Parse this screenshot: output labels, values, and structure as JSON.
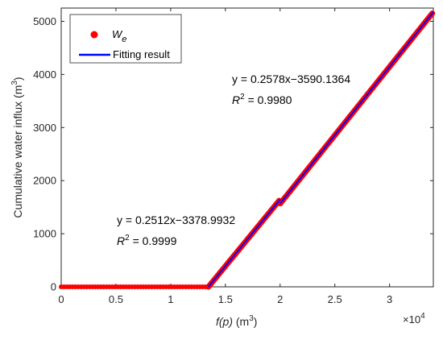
{
  "chart_data": {
    "type": "scatter",
    "xlabel": {
      "italic": "f(p)",
      "rest": " (m",
      "sup": "3",
      "close": ")"
    },
    "ylabel": {
      "main": "Cumulative water influx (m",
      "sup": "3",
      "close": ")"
    },
    "x_tick_labels": [
      "0",
      "0.5",
      "1",
      "1.5",
      "2",
      "2.5",
      "3"
    ],
    "x_ticks": [
      0,
      5000,
      10000,
      15000,
      20000,
      25000,
      30000
    ],
    "y_tick_labels": [
      "0",
      "1000",
      "2000",
      "3000",
      "4000",
      "5000"
    ],
    "y_ticks": [
      0,
      1000,
      2000,
      3000,
      4000,
      5000
    ],
    "x_exponent": {
      "base": "×10",
      "exp": "4"
    },
    "xlim": [
      0,
      34000
    ],
    "ylim": [
      0,
      5250
    ],
    "legend_placement": "top-left",
    "legend": [
      {
        "label_main": "W",
        "label_sub": "e",
        "marker": "dot",
        "color": "#ff0000"
      },
      {
        "label_main": "Fitting result",
        "label_sub": "",
        "marker": "line",
        "color": "#0000ff"
      }
    ],
    "series": [
      {
        "name": "We",
        "kind": "scatter",
        "color": "#ff0000",
        "flat_segment": {
          "x_start": 0,
          "x_end": 13450,
          "y": 0
        },
        "rising_segment": {
          "x_start": 13450,
          "x_end": 33900
        }
      },
      {
        "name": "Fitting result",
        "kind": "line",
        "color": "#0000ff",
        "segments": [
          {
            "x_start": 13450,
            "x_end": 20000,
            "slope": 0.2512,
            "intercept": -3378.9932
          },
          {
            "x_start": 20000,
            "x_end": 34000,
            "slope": 0.2578,
            "intercept": -3590.1364
          }
        ]
      }
    ],
    "annotations": [
      {
        "eq": "y = 0.2578x−3590.1364",
        "r2_label": "R",
        "r2_sup": "2",
        "r2_value": " = 0.9980"
      },
      {
        "eq": "y = 0.2512x−3378.9932",
        "r2_label": "R",
        "r2_sup": "2",
        "r2_value": " = 0.9999"
      }
    ]
  }
}
